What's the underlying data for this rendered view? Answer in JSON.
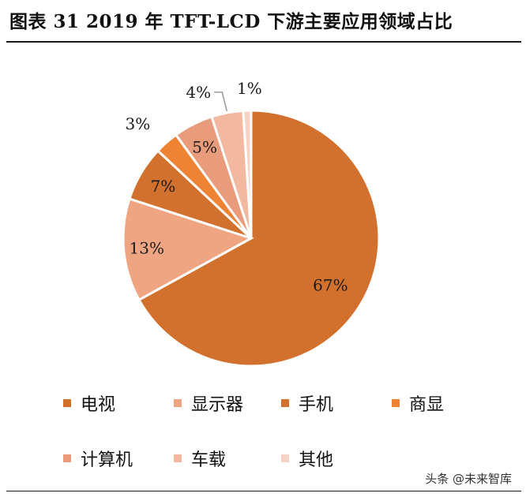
{
  "title": "图表 31 2019 年 TFT-LCD 下游主要应用领域占比",
  "chart_data": {
    "type": "pie",
    "categories": [
      "电视",
      "显示器",
      "手机",
      "商显",
      "计算机",
      "车载",
      "其他"
    ],
    "values": [
      67,
      13,
      7,
      3,
      5,
      4,
      1
    ],
    "labels": [
      "67%",
      "13%",
      "7%",
      "3%",
      "5%",
      "4%",
      "1%"
    ],
    "colors": [
      "#D2702E",
      "#EFA582",
      "#D2702E",
      "#EF8334",
      "#E99C7B",
      "#F2B8A0",
      "#F7D3C6"
    ],
    "legend_position": "bottom"
  },
  "watermark": "头条 @未来智库"
}
